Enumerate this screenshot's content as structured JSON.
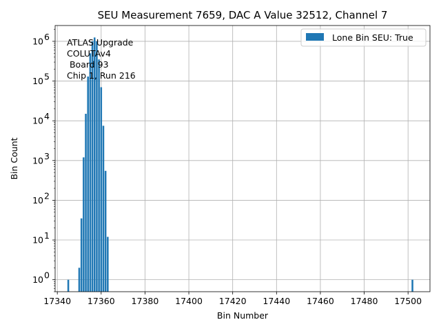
{
  "chart_data": {
    "type": "bar",
    "title": "SEU Measurement 7659, DAC A Value 32512, Channel 7",
    "xlabel": "Bin Number",
    "ylabel": "Bin Count",
    "xlim": [
      17339,
      17510
    ],
    "ylim": [
      0.5,
      2500000
    ],
    "yscale": "log",
    "grid": true,
    "x_ticks": [
      17340,
      17360,
      17380,
      17400,
      17420,
      17440,
      17460,
      17480,
      17500
    ],
    "y_ticks": [
      1,
      10,
      100,
      1000,
      10000,
      100000,
      1000000
    ],
    "y_tick_labels": [
      "10",
      "10",
      "10",
      "10",
      "10",
      "10",
      "10"
    ],
    "y_tick_exponents": [
      "0",
      "1",
      "2",
      "3",
      "4",
      "5",
      "6"
    ],
    "legend_position": "upper right",
    "series": [
      {
        "name": "Lone Bin SEU: True",
        "color": "#1f77b4",
        "x": [
          17345,
          17350,
          17351,
          17352,
          17353,
          17354,
          17355,
          17356,
          17357,
          17358,
          17359,
          17360,
          17361,
          17362,
          17363,
          17502
        ],
        "values": [
          1,
          2,
          35,
          1200,
          15000,
          130000,
          500000,
          1000000,
          1250000,
          1000000,
          350000,
          70000,
          7500,
          550,
          12,
          1
        ]
      }
    ],
    "annotations": [
      "ATLAS Upgrade",
      "COLUTAv4",
      " Board 93",
      "Chip 1, Run 216"
    ]
  }
}
